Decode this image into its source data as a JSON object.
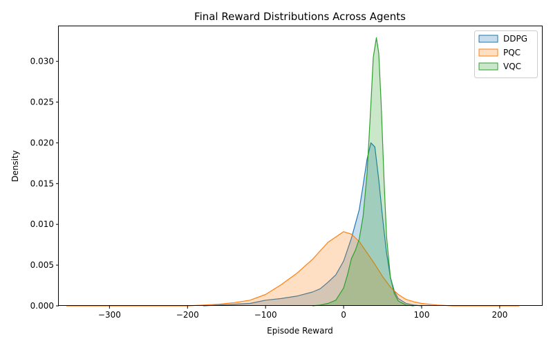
{
  "chart_data": {
    "type": "area",
    "title": "Final Reward Distributions Across Agents",
    "xlabel": "Episode Reward",
    "ylabel": "Density",
    "xlim": [
      -365,
      255
    ],
    "ylim": [
      0,
      0.0343
    ],
    "xticks": [
      -300,
      -200,
      -100,
      0,
      100,
      200
    ],
    "xtick_labels": [
      "−300",
      "−200",
      "−100",
      "0",
      "100",
      "200"
    ],
    "yticks": [
      0.0,
      0.005,
      0.01,
      0.015,
      0.02,
      0.025,
      0.03
    ],
    "ytick_labels": [
      "0.000",
      "0.005",
      "0.010",
      "0.015",
      "0.020",
      "0.025",
      "0.030"
    ],
    "grid": false,
    "legend_position": "top-right",
    "series": [
      {
        "name": "DDPG",
        "color": "#1f77b4",
        "x": [
          -180,
          -160,
          -140,
          -120,
          -100,
          -80,
          -60,
          -40,
          -30,
          -20,
          -10,
          0,
          10,
          20,
          25,
          30,
          35,
          40,
          45,
          50,
          55,
          60,
          65,
          70,
          80,
          90,
          100
        ],
        "y": [
          0,
          0.0001,
          0.0002,
          0.0003,
          0.0007,
          0.0009,
          0.0012,
          0.0017,
          0.0021,
          0.0029,
          0.0038,
          0.0055,
          0.0083,
          0.0118,
          0.0148,
          0.018,
          0.02,
          0.0195,
          0.0155,
          0.0108,
          0.0065,
          0.0035,
          0.0018,
          0.0009,
          0.0003,
          0.0001,
          0
        ]
      },
      {
        "name": "PQC",
        "color": "#ff7f0e",
        "x": [
          -355,
          -300,
          -250,
          -200,
          -180,
          -160,
          -140,
          -120,
          -100,
          -80,
          -60,
          -40,
          -20,
          0,
          10,
          20,
          30,
          40,
          50,
          60,
          70,
          80,
          90,
          100,
          120,
          140,
          160,
          200,
          225
        ],
        "y": [
          0,
          0,
          0,
          0,
          0.0001,
          0.0002,
          0.0004,
          0.0007,
          0.0014,
          0.0026,
          0.004,
          0.0057,
          0.0078,
          0.0091,
          0.0088,
          0.0079,
          0.0065,
          0.0051,
          0.0036,
          0.0023,
          0.0014,
          0.0008,
          0.0005,
          0.0003,
          0.0001,
          0,
          0,
          0,
          0
        ]
      },
      {
        "name": "VQC",
        "color": "#2ca02c",
        "x": [
          -40,
          -30,
          -20,
          -10,
          0,
          5,
          10,
          15,
          20,
          25,
          30,
          35,
          38,
          42,
          45,
          48,
          52,
          55,
          60,
          65,
          70,
          80,
          90
        ],
        "y": [
          0,
          0.0001,
          0.0003,
          0.0007,
          0.0022,
          0.0038,
          0.0058,
          0.0068,
          0.0082,
          0.011,
          0.0162,
          0.0248,
          0.0305,
          0.0329,
          0.031,
          0.025,
          0.015,
          0.0085,
          0.0035,
          0.0015,
          0.0006,
          0.0001,
          0
        ]
      }
    ]
  }
}
